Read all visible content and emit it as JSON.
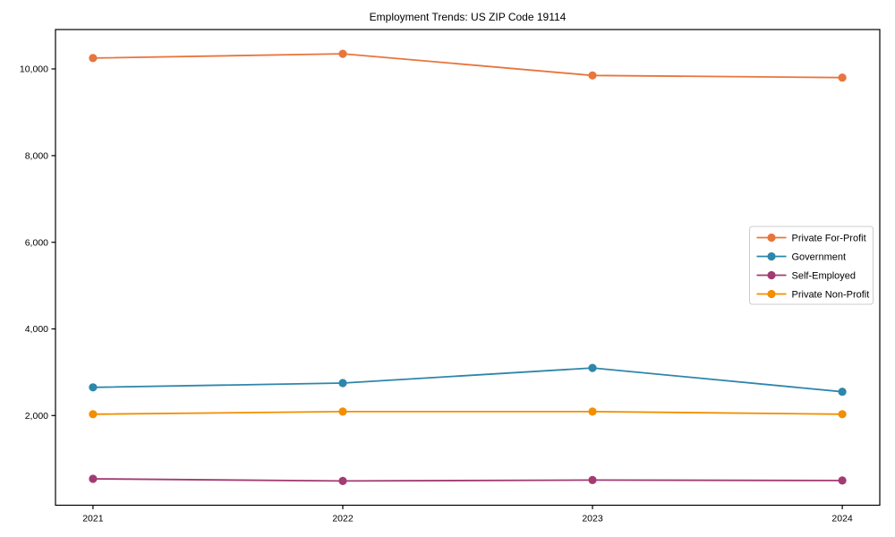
{
  "title": "Employment Trends: US ZIP Code 19114",
  "chart_data": {
    "type": "line",
    "title": "Employment Trends: US ZIP Code 19114",
    "xlabel": "",
    "ylabel": "",
    "grid": false,
    "legend_position": "center-right",
    "x": [
      2021,
      2022,
      2023,
      2024
    ],
    "xtick_labels": [
      "2021",
      "2022",
      "2023",
      "2024"
    ],
    "yticks": [
      2000,
      4000,
      6000,
      8000,
      10000
    ],
    "ytick_labels": [
      "2,000",
      "4,000",
      "6,000",
      "8,000",
      "10,000"
    ],
    "xlim": [
      2020.85,
      2024.15
    ],
    "ylim": [
      -70,
      10910
    ],
    "series": [
      {
        "name": "Private For-Profit",
        "color": "#e8753c",
        "values": [
          10250,
          10350,
          9850,
          9800
        ]
      },
      {
        "name": "Government",
        "color": "#2e86ab",
        "values": [
          2650,
          2750,
          3100,
          2550
        ]
      },
      {
        "name": "Self-Employed",
        "color": "#a23b72",
        "values": [
          540,
          490,
          510,
          500
        ]
      },
      {
        "name": "Private Non-Profit",
        "color": "#f18f01",
        "values": [
          2030,
          2090,
          2090,
          2030
        ]
      }
    ]
  }
}
